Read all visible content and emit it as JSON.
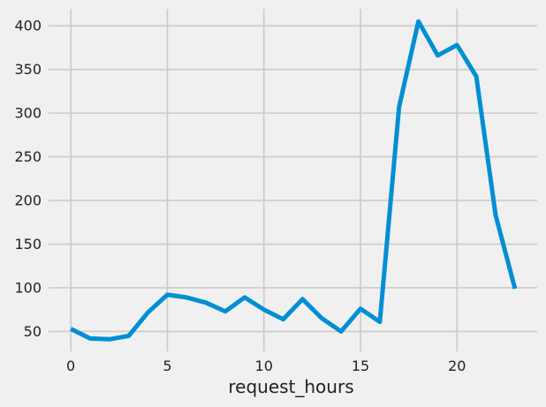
{
  "chart_data": {
    "type": "line",
    "title": "",
    "xlabel": "request_hours",
    "ylabel": "",
    "grid": true,
    "xlim": [
      -1.15,
      24.15
    ],
    "ylim": [
      27.2,
      419.4
    ],
    "x_ticks": [
      0,
      5,
      10,
      15,
      20
    ],
    "y_ticks": [
      50,
      100,
      150,
      200,
      250,
      300,
      350,
      400
    ],
    "x": [
      0,
      1,
      2,
      3,
      4,
      5,
      6,
      7,
      8,
      9,
      10,
      11,
      12,
      13,
      14,
      15,
      16,
      17,
      18,
      19,
      20,
      21,
      22,
      23
    ],
    "series": [
      {
        "values": [
          53,
          42,
          41,
          45,
          72,
          92,
          89,
          83,
          73,
          89,
          75,
          64,
          87,
          65,
          50,
          76,
          61,
          307,
          405,
          366,
          378,
          342,
          183,
          99
        ],
        "color": "#008fd5"
      }
    ]
  }
}
